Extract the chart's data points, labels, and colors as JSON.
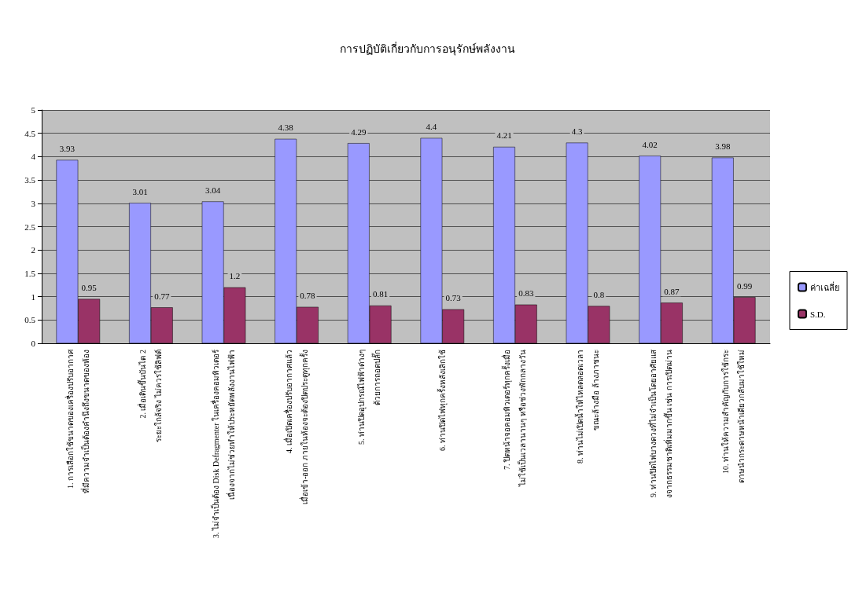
{
  "chart_data": {
    "type": "bar",
    "title": "การปฏิบัติเกี่ยวกับการอนุรักษ์พลังงาน",
    "categories": [
      "1. การเลือกใช้ขนาดของเครื่องปรับอากาศที่มีความจำเป็นต้องคำนึงถึงขนาดของห้อง",
      "2. เมื่อเดินขึ้นบันได 2 ระยะใกล้จริง ไม่ควรใช้ลิฟต์",
      "3. ไม่จำเป็นต้อง Disk Defragmenter ในเครื่องคอมพิวเตอร์ เนื่องจากไม่ช่วยทำให้ประหยัดพลังงานไฟฟ้า",
      "4. เมื่อเปิดเครื่องปรับอากาศแล้ว เมื่อเข้า-ออก ภายในห้องจะต้องปิดประตูทุกครั้ง",
      "5. ท่านปิดอุปกรณ์ไฟฟ้าต่างๆ ด้วยการถอดปลั๊ก",
      "6. ท่านปิดไฟทุกครั้งหลังเลิกใช้",
      "7. ปิดหน้าจอคอมพิวเตอร์ทุกครั้งเมื่อไม่ใช้เป็นเวลานานๆ หรือช่วงพักกลางวัน",
      "8. ท่านไม่เปิดน้ำให้ไหลตลอดเวลา ขณะล้างมือ ล้างภาชนะ",
      "9. ท่านปิดไฟบางดวงที่ไม่จำเป็นโดยอาศัยแสงจากธรรมชาติเพิ่มมากขึ้น เช่น การเปิดม่าน",
      "10. ท่านให้ความสำคัญกับการใช้กระดาษนำกระดาษหน้าเดียวกลับมาใช้ใหม่"
    ],
    "series": [
      {
        "name": "ค่าเฉลี่ย",
        "color": "#9999ff",
        "values": [
          3.93,
          3.01,
          3.04,
          4.38,
          4.29,
          4.4,
          4.21,
          4.3,
          4.02,
          3.98
        ]
      },
      {
        "name": "S.D.",
        "color": "#993366",
        "values": [
          0.95,
          0.77,
          1.2,
          0.78,
          0.81,
          0.73,
          0.83,
          0.8,
          0.87,
          0.99
        ]
      }
    ],
    "ylim": [
      0,
      5
    ],
    "yticks": [
      0,
      0.5,
      1,
      1.5,
      2,
      2.5,
      3,
      3.5,
      4,
      4.5,
      5
    ],
    "grid": "y",
    "legend": "right",
    "data_labels": true
  }
}
